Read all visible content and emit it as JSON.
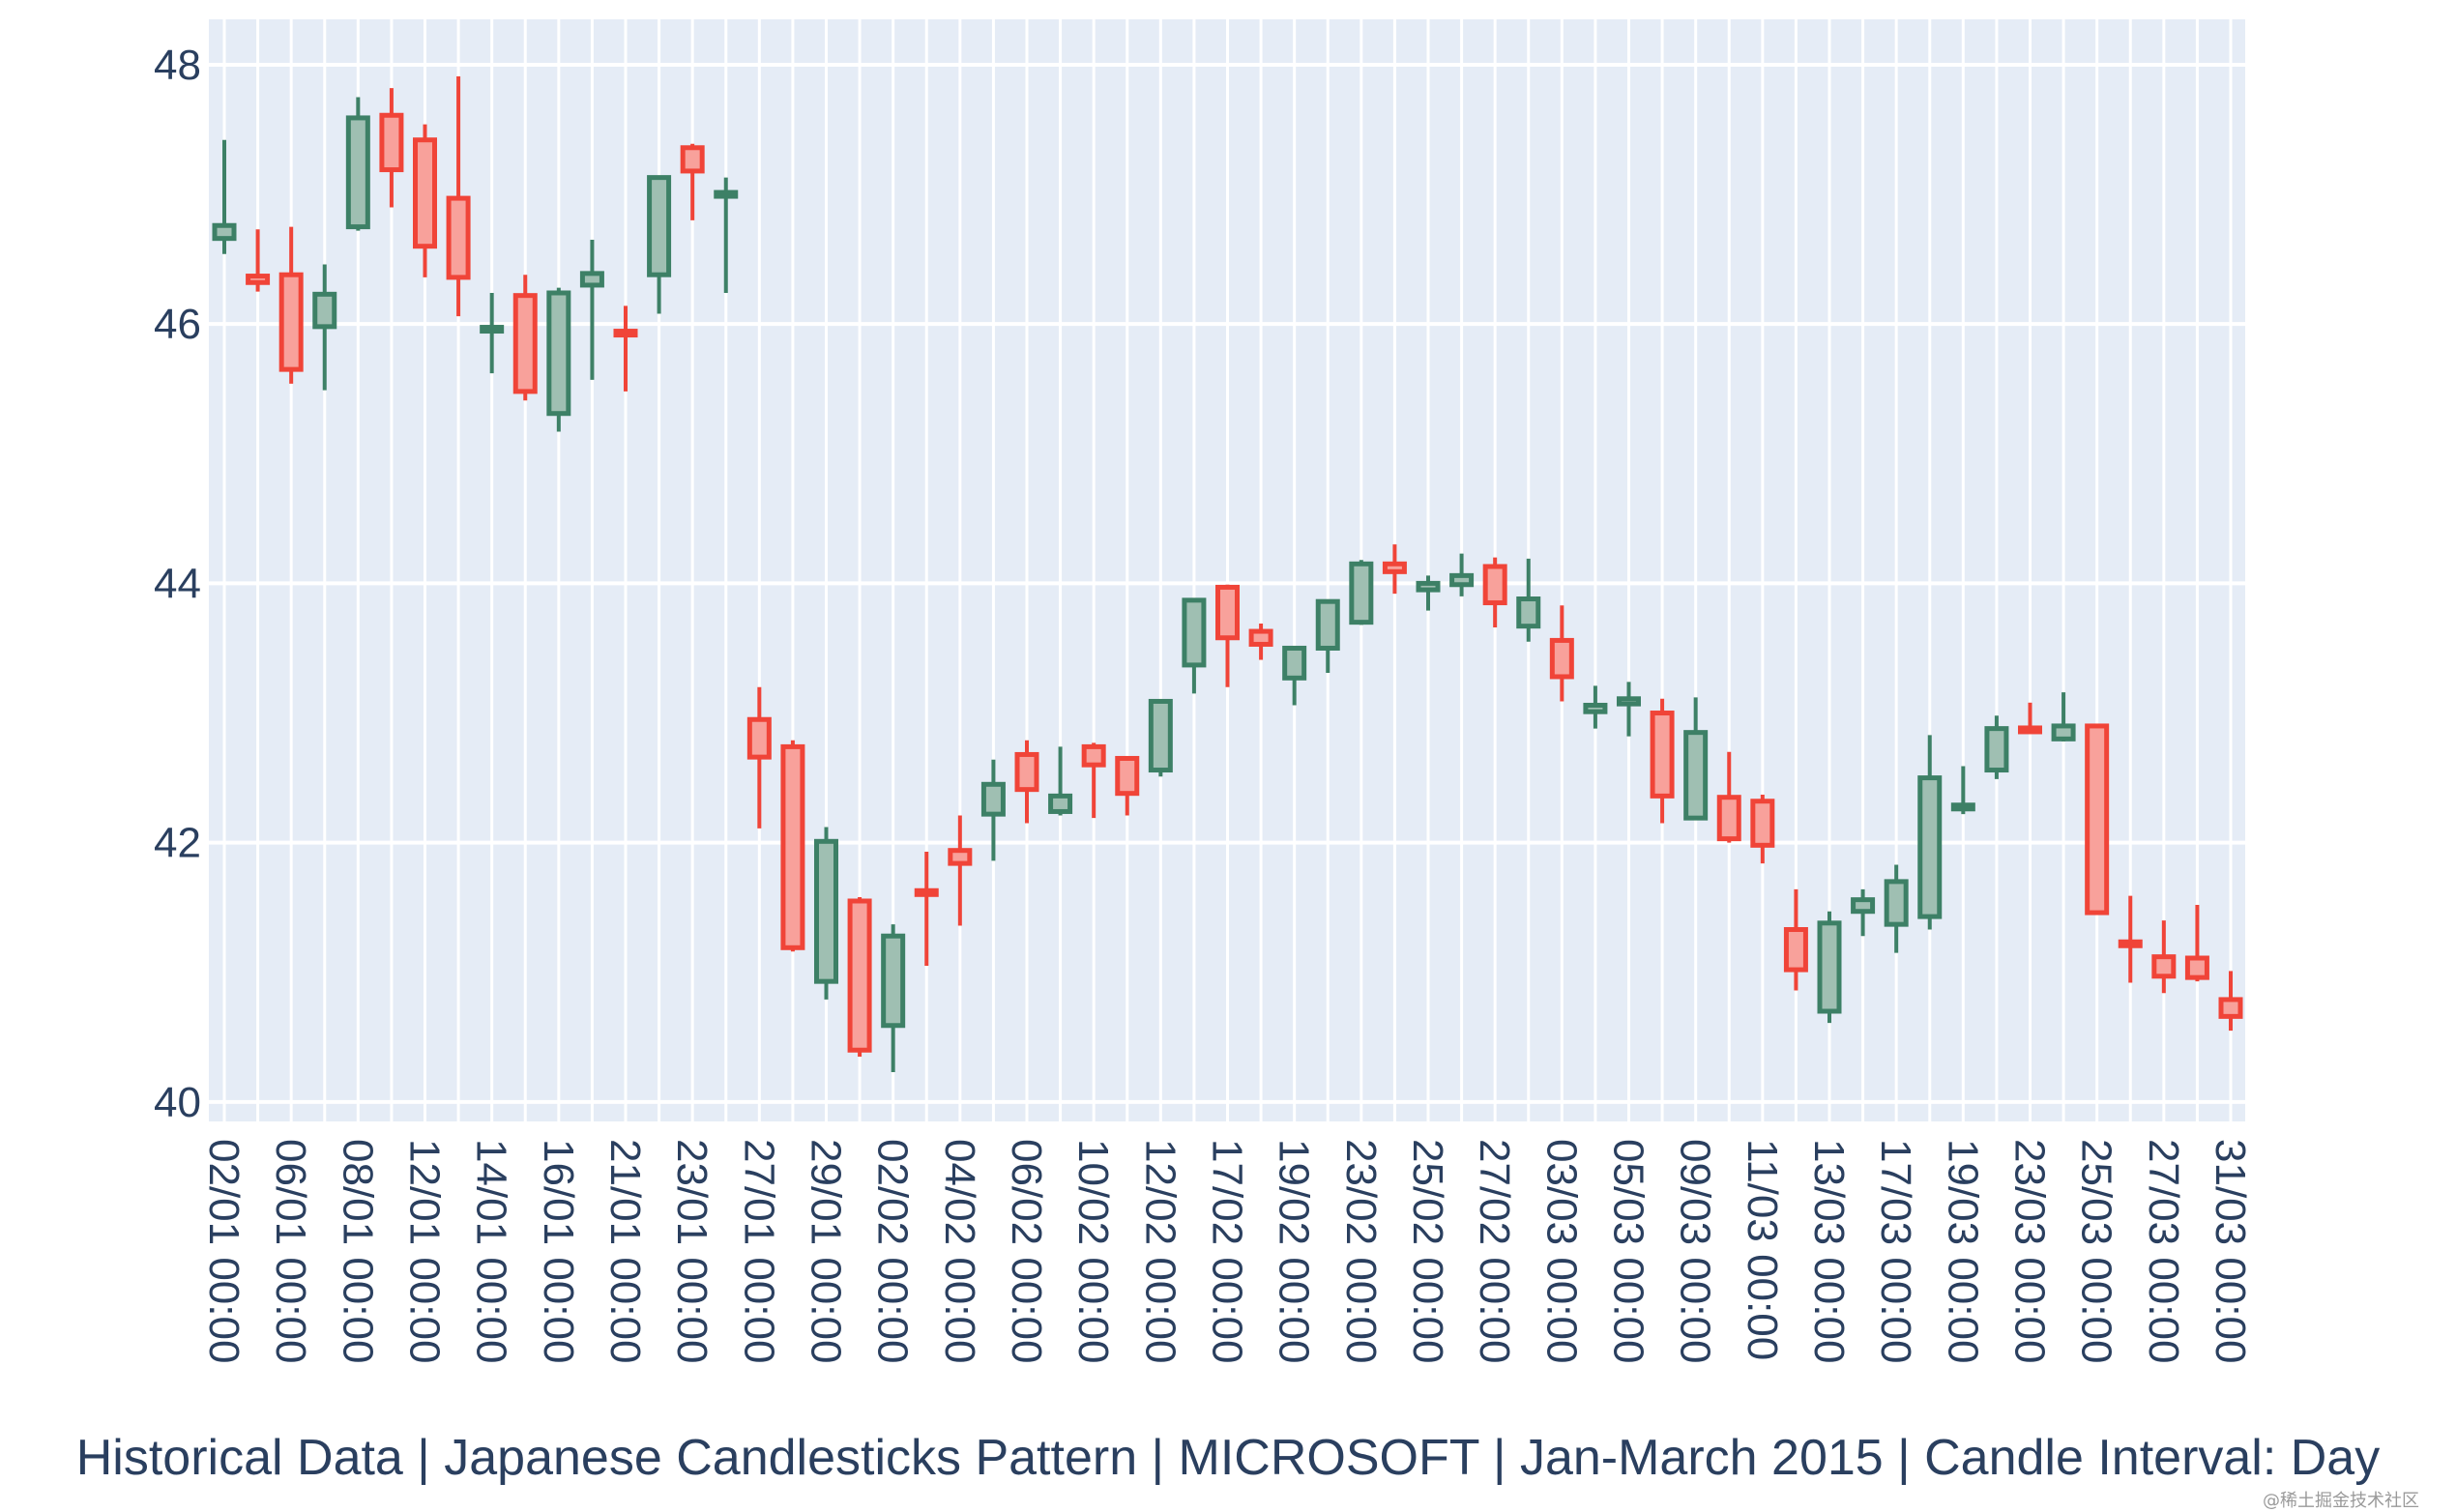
{
  "chart_data": {
    "type": "candlestick",
    "title": "Historical Data | Japanese Candlesticks Pattern | MICROSOFT | Jan-March 2015 | Candle Interval: Day",
    "xlabel": "",
    "ylabel": "",
    "ylim": [
      39.85,
      48.35
    ],
    "yticks": [
      40,
      42,
      44,
      46,
      48
    ],
    "grid": true,
    "legend": "none",
    "colors": {
      "increasing": "#3d8066",
      "increasing_fill": "#9fbfb2",
      "decreasing": "#f04438",
      "decreasing_fill": "#f8a19b",
      "plot_bg": "#e5ecf6",
      "grid": "#ffffff",
      "text": "#2a3f5f"
    },
    "x_tick_labels": [
      "02/01 00:00",
      "06/01 00:00",
      "08/01 00:00",
      "12/01 00:00",
      "14/01 00:00",
      "16/01 00:00",
      "21/01 00:00",
      "23/01 00:00",
      "27/01 00:00",
      "29/01 00:00",
      "02/02 00:00",
      "04/02 00:00",
      "06/02 00:00",
      "10/02 00:00",
      "12/02 00:00",
      "17/02 00:00",
      "19/02 00:00",
      "23/02 00:00",
      "25/02 00:00",
      "27/02 00:00",
      "03/03 00:00",
      "05/03 00:00",
      "09/03 00:00",
      "11/03 00:00",
      "13/03 00:00",
      "17/03 00:00",
      "19/03 00:00",
      "23/03 00:00",
      "25/03 00:00",
      "27/03 00:00",
      "31/03 00:00"
    ],
    "candles": [
      {
        "date": "02/01",
        "open": 46.66,
        "high": 47.42,
        "low": 46.54,
        "close": 46.76
      },
      {
        "date": "05/01",
        "open": 46.37,
        "high": 46.73,
        "low": 46.25,
        "close": 46.32
      },
      {
        "date": "06/01",
        "open": 46.38,
        "high": 46.75,
        "low": 45.54,
        "close": 45.65
      },
      {
        "date": "07/01",
        "open": 45.98,
        "high": 46.46,
        "low": 45.49,
        "close": 46.23
      },
      {
        "date": "08/01",
        "open": 46.75,
        "high": 47.75,
        "low": 46.72,
        "close": 47.59
      },
      {
        "date": "09/01",
        "open": 47.61,
        "high": 47.82,
        "low": 46.9,
        "close": 47.19
      },
      {
        "date": "12/01",
        "open": 47.42,
        "high": 47.54,
        "low": 46.36,
        "close": 46.6
      },
      {
        "date": "13/01",
        "open": 46.97,
        "high": 47.91,
        "low": 46.06,
        "close": 46.36
      },
      {
        "date": "14/01",
        "open": 45.96,
        "high": 46.24,
        "low": 45.62,
        "close": 45.96
      },
      {
        "date": "15/01",
        "open": 46.22,
        "high": 46.38,
        "low": 45.41,
        "close": 45.48
      },
      {
        "date": "16/01",
        "open": 45.31,
        "high": 46.28,
        "low": 45.17,
        "close": 46.24
      },
      {
        "date": "20/01",
        "open": 46.3,
        "high": 46.65,
        "low": 45.57,
        "close": 46.39
      },
      {
        "date": "21/01",
        "open": 45.94,
        "high": 46.14,
        "low": 45.48,
        "close": 45.92
      },
      {
        "date": "22/01",
        "open": 46.38,
        "high": 47.14,
        "low": 46.08,
        "close": 47.13
      },
      {
        "date": "23/01",
        "open": 47.36,
        "high": 47.39,
        "low": 46.8,
        "close": 47.18
      },
      {
        "date": "26/01",
        "open": 46.99,
        "high": 47.13,
        "low": 46.24,
        "close": 47.01
      },
      {
        "date": "27/01",
        "open": 42.95,
        "high": 43.2,
        "low": 42.11,
        "close": 42.66
      },
      {
        "date": "28/01",
        "open": 42.74,
        "high": 42.79,
        "low": 41.16,
        "close": 41.19
      },
      {
        "date": "29/01",
        "open": 40.93,
        "high": 42.12,
        "low": 40.79,
        "close": 42.01
      },
      {
        "date": "30/01",
        "open": 41.55,
        "high": 41.58,
        "low": 40.35,
        "close": 40.4
      },
      {
        "date": "02/02",
        "open": 40.59,
        "high": 41.37,
        "low": 40.23,
        "close": 41.28
      },
      {
        "date": "03/02",
        "open": 41.63,
        "high": 41.93,
        "low": 41.05,
        "close": 41.6
      },
      {
        "date": "04/02",
        "open": 41.94,
        "high": 42.21,
        "low": 41.36,
        "close": 41.84
      },
      {
        "date": "05/02",
        "open": 42.22,
        "high": 42.64,
        "low": 41.86,
        "close": 42.45
      },
      {
        "date": "06/02",
        "open": 42.68,
        "high": 42.79,
        "low": 42.15,
        "close": 42.41
      },
      {
        "date": "09/02",
        "open": 42.24,
        "high": 42.74,
        "low": 42.21,
        "close": 42.36
      },
      {
        "date": "10/02",
        "open": 42.74,
        "high": 42.77,
        "low": 42.19,
        "close": 42.6
      },
      {
        "date": "11/02",
        "open": 42.65,
        "high": 42.65,
        "low": 42.21,
        "close": 42.38
      },
      {
        "date": "12/02",
        "open": 42.56,
        "high": 43.09,
        "low": 42.51,
        "close": 43.09
      },
      {
        "date": "13/02",
        "open": 43.37,
        "high": 43.88,
        "low": 43.15,
        "close": 43.87
      },
      {
        "date": "17/02",
        "open": 43.97,
        "high": 43.99,
        "low": 43.2,
        "close": 43.58
      },
      {
        "date": "18/02",
        "open": 43.63,
        "high": 43.69,
        "low": 43.41,
        "close": 43.53
      },
      {
        "date": "19/02",
        "open": 43.27,
        "high": 43.5,
        "low": 43.06,
        "close": 43.5
      },
      {
        "date": "20/02",
        "open": 43.5,
        "high": 43.86,
        "low": 43.31,
        "close": 43.86
      },
      {
        "date": "23/02",
        "open": 43.7,
        "high": 44.18,
        "low": 43.68,
        "close": 44.15
      },
      {
        "date": "24/02",
        "open": 44.15,
        "high": 44.3,
        "low": 43.92,
        "close": 44.09
      },
      {
        "date": "25/02",
        "open": 43.95,
        "high": 44.06,
        "low": 43.79,
        "close": 44.0
      },
      {
        "date": "26/02",
        "open": 43.99,
        "high": 44.23,
        "low": 43.9,
        "close": 44.06
      },
      {
        "date": "27/02",
        "open": 44.13,
        "high": 44.2,
        "low": 43.66,
        "close": 43.85
      },
      {
        "date": "02/03",
        "open": 43.67,
        "high": 44.19,
        "low": 43.55,
        "close": 43.88
      },
      {
        "date": "03/03",
        "open": 43.56,
        "high": 43.83,
        "low": 43.09,
        "close": 43.28
      },
      {
        "date": "04/03",
        "open": 43.01,
        "high": 43.21,
        "low": 42.88,
        "close": 43.06
      },
      {
        "date": "05/03",
        "open": 43.07,
        "high": 43.24,
        "low": 42.82,
        "close": 43.11
      },
      {
        "date": "06/03",
        "open": 43.0,
        "high": 43.11,
        "low": 42.15,
        "close": 42.36
      },
      {
        "date": "09/03",
        "open": 42.19,
        "high": 43.12,
        "low": 42.19,
        "close": 42.85
      },
      {
        "date": "10/03",
        "open": 42.35,
        "high": 42.7,
        "low": 42.0,
        "close": 42.03
      },
      {
        "date": "11/03",
        "open": 42.32,
        "high": 42.37,
        "low": 41.84,
        "close": 41.98
      },
      {
        "date": "12/03",
        "open": 41.33,
        "high": 41.64,
        "low": 40.86,
        "close": 41.02
      },
      {
        "date": "13/03",
        "open": 40.7,
        "high": 41.47,
        "low": 40.61,
        "close": 41.38
      },
      {
        "date": "16/03",
        "open": 41.47,
        "high": 41.64,
        "low": 41.28,
        "close": 41.56
      },
      {
        "date": "17/03",
        "open": 41.37,
        "high": 41.83,
        "low": 41.15,
        "close": 41.7
      },
      {
        "date": "18/03",
        "open": 41.43,
        "high": 42.83,
        "low": 41.33,
        "close": 42.5
      },
      {
        "date": "19/03",
        "open": 42.26,
        "high": 42.59,
        "low": 42.22,
        "close": 42.29
      },
      {
        "date": "20/03",
        "open": 42.56,
        "high": 42.98,
        "low": 42.49,
        "close": 42.88
      },
      {
        "date": "23/03",
        "open": 42.88,
        "high": 43.08,
        "low": 42.85,
        "close": 42.86
      },
      {
        "date": "24/03",
        "open": 42.8,
        "high": 43.16,
        "low": 42.78,
        "close": 42.9
      },
      {
        "date": "25/03",
        "open": 42.9,
        "high": 42.9,
        "low": 41.45,
        "close": 41.46
      },
      {
        "date": "26/03",
        "open": 41.23,
        "high": 41.59,
        "low": 40.92,
        "close": 41.21
      },
      {
        "date": "27/03",
        "open": 41.12,
        "high": 41.4,
        "low": 40.84,
        "close": 40.97
      },
      {
        "date": "30/03",
        "open": 41.11,
        "high": 41.52,
        "low": 40.93,
        "close": 40.96
      },
      {
        "date": "31/03",
        "open": 40.79,
        "high": 41.01,
        "low": 40.55,
        "close": 40.66
      }
    ]
  },
  "watermark": "@稀土掘金技术社区"
}
